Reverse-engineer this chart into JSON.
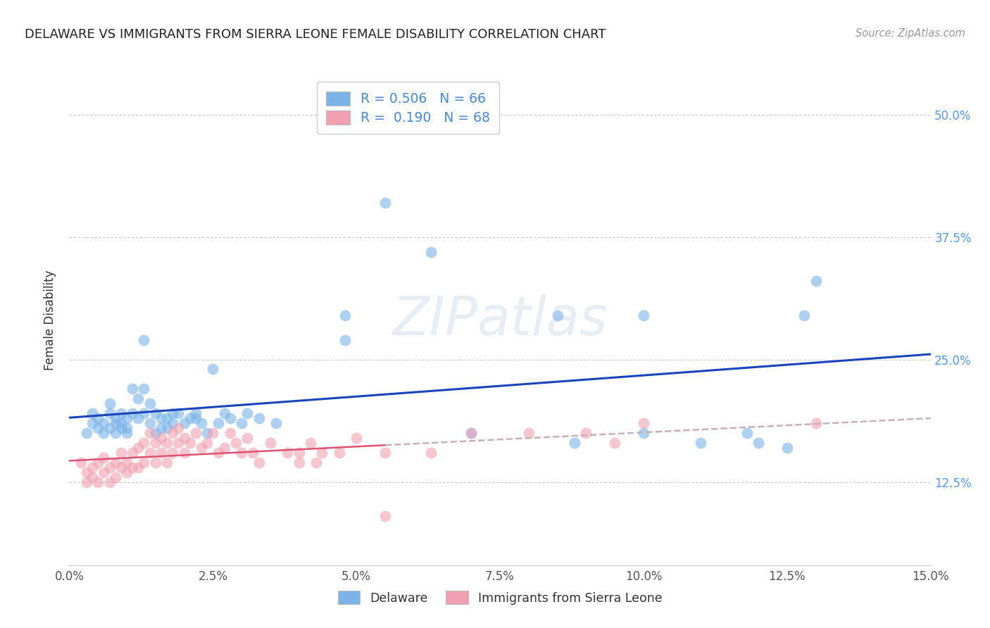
{
  "title": "DELAWARE VS IMMIGRANTS FROM SIERRA LEONE FEMALE DISABILITY CORRELATION CHART",
  "source": "Source: ZipAtlas.com",
  "ylabel": "Female Disability",
  "xlabel_ticks": [
    "0.0%",
    "",
    "2.5%",
    "",
    "5.0%",
    "",
    "7.5%",
    "",
    "10.0%",
    "",
    "12.5%",
    "",
    "15.0%"
  ],
  "ylabel_ticks": [
    "12.5%",
    "25.0%",
    "37.5%",
    "50.0%"
  ],
  "xmin": 0.0,
  "xmax": 0.15,
  "ymin": 0.04,
  "ymax": 0.54,
  "delaware_color": "#7ab3e8",
  "sierra_leone_color": "#f0a0b0",
  "delaware_line_color": "#1a44bb",
  "sierra_leone_line_color": "#e05070",
  "sierra_leone_dash_color": "#c8b0b8",
  "background_color": "#ffffff",
  "watermark": "ZIPatlas",
  "legend1_label1": "R = 0.506   N = 66",
  "legend1_label2": "R =  0.190   N = 68",
  "legend2_label1": "Delaware",
  "legend2_label2": "Immigrants from Sierra Leone",
  "delaware_points": [
    [
      0.003,
      0.175
    ],
    [
      0.004,
      0.185
    ],
    [
      0.004,
      0.195
    ],
    [
      0.005,
      0.18
    ],
    [
      0.005,
      0.19
    ],
    [
      0.006,
      0.175
    ],
    [
      0.006,
      0.185
    ],
    [
      0.007,
      0.18
    ],
    [
      0.007,
      0.195
    ],
    [
      0.007,
      0.205
    ],
    [
      0.008,
      0.185
    ],
    [
      0.008,
      0.175
    ],
    [
      0.008,
      0.19
    ],
    [
      0.009,
      0.18
    ],
    [
      0.009,
      0.195
    ],
    [
      0.009,
      0.185
    ],
    [
      0.01,
      0.18
    ],
    [
      0.01,
      0.19
    ],
    [
      0.01,
      0.175
    ],
    [
      0.011,
      0.22
    ],
    [
      0.011,
      0.195
    ],
    [
      0.012,
      0.21
    ],
    [
      0.012,
      0.19
    ],
    [
      0.013,
      0.22
    ],
    [
      0.013,
      0.195
    ],
    [
      0.013,
      0.27
    ],
    [
      0.014,
      0.205
    ],
    [
      0.014,
      0.185
    ],
    [
      0.015,
      0.195
    ],
    [
      0.015,
      0.175
    ],
    [
      0.016,
      0.19
    ],
    [
      0.016,
      0.18
    ],
    [
      0.017,
      0.19
    ],
    [
      0.017,
      0.18
    ],
    [
      0.018,
      0.195
    ],
    [
      0.018,
      0.185
    ],
    [
      0.019,
      0.195
    ],
    [
      0.02,
      0.185
    ],
    [
      0.021,
      0.19
    ],
    [
      0.022,
      0.19
    ],
    [
      0.022,
      0.195
    ],
    [
      0.023,
      0.185
    ],
    [
      0.024,
      0.175
    ],
    [
      0.025,
      0.24
    ],
    [
      0.026,
      0.185
    ],
    [
      0.027,
      0.195
    ],
    [
      0.028,
      0.19
    ],
    [
      0.03,
      0.185
    ],
    [
      0.031,
      0.195
    ],
    [
      0.033,
      0.19
    ],
    [
      0.036,
      0.185
    ],
    [
      0.048,
      0.295
    ],
    [
      0.048,
      0.27
    ],
    [
      0.055,
      0.41
    ],
    [
      0.063,
      0.36
    ],
    [
      0.07,
      0.175
    ],
    [
      0.085,
      0.295
    ],
    [
      0.1,
      0.175
    ],
    [
      0.11,
      0.165
    ],
    [
      0.118,
      0.175
    ],
    [
      0.12,
      0.165
    ],
    [
      0.125,
      0.16
    ],
    [
      0.128,
      0.295
    ],
    [
      0.13,
      0.33
    ],
    [
      0.1,
      0.295
    ],
    [
      0.088,
      0.165
    ]
  ],
  "sierra_leone_points": [
    [
      0.002,
      0.145
    ],
    [
      0.003,
      0.135
    ],
    [
      0.003,
      0.125
    ],
    [
      0.004,
      0.14
    ],
    [
      0.004,
      0.13
    ],
    [
      0.005,
      0.145
    ],
    [
      0.005,
      0.125
    ],
    [
      0.006,
      0.135
    ],
    [
      0.006,
      0.15
    ],
    [
      0.007,
      0.14
    ],
    [
      0.007,
      0.125
    ],
    [
      0.008,
      0.145
    ],
    [
      0.008,
      0.13
    ],
    [
      0.009,
      0.14
    ],
    [
      0.009,
      0.155
    ],
    [
      0.01,
      0.135
    ],
    [
      0.01,
      0.145
    ],
    [
      0.011,
      0.155
    ],
    [
      0.011,
      0.14
    ],
    [
      0.012,
      0.16
    ],
    [
      0.012,
      0.14
    ],
    [
      0.013,
      0.165
    ],
    [
      0.013,
      0.145
    ],
    [
      0.014,
      0.155
    ],
    [
      0.014,
      0.175
    ],
    [
      0.015,
      0.165
    ],
    [
      0.015,
      0.145
    ],
    [
      0.016,
      0.155
    ],
    [
      0.016,
      0.17
    ],
    [
      0.017,
      0.165
    ],
    [
      0.017,
      0.145
    ],
    [
      0.018,
      0.175
    ],
    [
      0.018,
      0.155
    ],
    [
      0.019,
      0.18
    ],
    [
      0.019,
      0.165
    ],
    [
      0.02,
      0.17
    ],
    [
      0.02,
      0.155
    ],
    [
      0.021,
      0.165
    ],
    [
      0.022,
      0.175
    ],
    [
      0.023,
      0.16
    ],
    [
      0.024,
      0.165
    ],
    [
      0.025,
      0.175
    ],
    [
      0.026,
      0.155
    ],
    [
      0.027,
      0.16
    ],
    [
      0.028,
      0.175
    ],
    [
      0.029,
      0.165
    ],
    [
      0.03,
      0.155
    ],
    [
      0.031,
      0.17
    ],
    [
      0.032,
      0.155
    ],
    [
      0.033,
      0.145
    ],
    [
      0.035,
      0.165
    ],
    [
      0.038,
      0.155
    ],
    [
      0.04,
      0.145
    ],
    [
      0.04,
      0.155
    ],
    [
      0.042,
      0.165
    ],
    [
      0.043,
      0.145
    ],
    [
      0.044,
      0.155
    ],
    [
      0.047,
      0.155
    ],
    [
      0.05,
      0.17
    ],
    [
      0.055,
      0.155
    ],
    [
      0.055,
      0.09
    ],
    [
      0.063,
      0.155
    ],
    [
      0.07,
      0.175
    ],
    [
      0.08,
      0.175
    ],
    [
      0.09,
      0.175
    ],
    [
      0.095,
      0.165
    ],
    [
      0.1,
      0.185
    ],
    [
      0.13,
      0.185
    ]
  ]
}
